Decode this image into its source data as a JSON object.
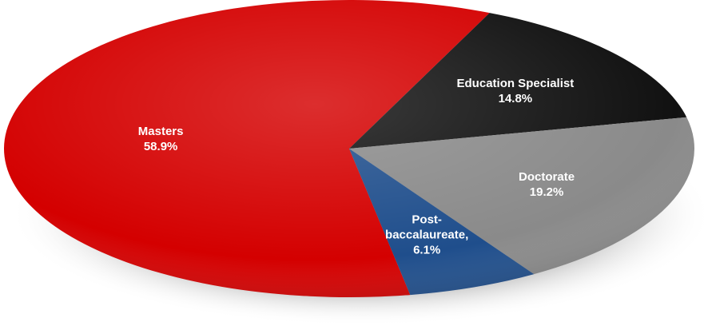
{
  "chart_data": {
    "type": "pie",
    "style": "3d-tilted",
    "legend": "none",
    "slices": [
      {
        "label": "Masters",
        "value_text": "58.9%",
        "value": 58.9,
        "color": "#d40000",
        "text_color": "#ffffff"
      },
      {
        "label": "Education Specialist",
        "value_text": "14.8%",
        "value": 14.8,
        "color": "#111111",
        "text_color": "#ffffff"
      },
      {
        "label": "Doctorate",
        "value_text": "19.2%",
        "value": 19.2,
        "color": "#8a8a8a",
        "text_color": "#ffffff"
      },
      {
        "label": "Post-\nbaccalaureate,",
        "value_text": "6.1%",
        "value": 6.1,
        "color": "#1f4e8c",
        "text_color": "#ffffff"
      }
    ]
  }
}
